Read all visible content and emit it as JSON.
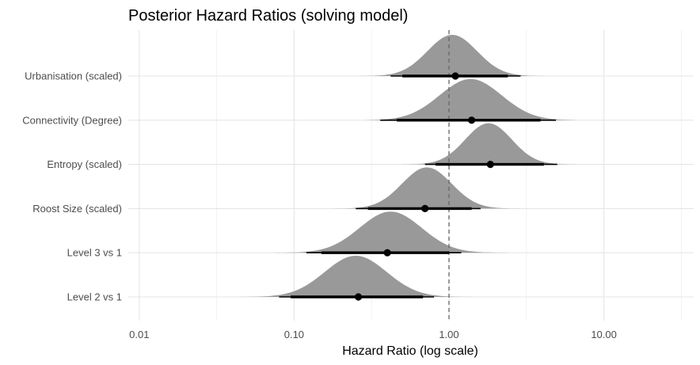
{
  "chart_data": {
    "type": "density-interval",
    "title": "Posterior Hazard Ratios (solving model)",
    "xlabel": "Hazard Ratio (log scale)",
    "ylabel": "",
    "x_scale": "log10",
    "xlim": [
      0.0085,
      38
    ],
    "x_ticks": [
      0.01,
      0.1,
      1,
      10
    ],
    "x_tick_labels": [
      "0.01",
      "0.10",
      "1.00",
      "10.00"
    ],
    "reference_line": 1,
    "grid": true,
    "categories": [
      "Urbanisation (scaled)",
      "Connectivity (Degree)",
      "Entropy (scaled)",
      "Roost Size (scaled)",
      "Level 3 vs 1",
      "Level 2 vs 1"
    ],
    "series": [
      {
        "label": "Urbanisation (scaled)",
        "median": 1.1,
        "ci_inner": [
          0.5,
          2.4
        ],
        "ci_outer": [
          0.42,
          2.9
        ],
        "density_mode": 1.05,
        "density_sd_log10": 0.16
      },
      {
        "label": "Connectivity (Degree)",
        "median": 1.4,
        "ci_inner": [
          0.46,
          3.9
        ],
        "ci_outer": [
          0.36,
          4.9
        ],
        "density_mode": 1.38,
        "density_sd_log10": 0.2
      },
      {
        "label": "Entropy (scaled)",
        "median": 1.85,
        "ci_inner": [
          0.82,
          4.1
        ],
        "ci_outer": [
          0.7,
          5.0
        ],
        "density_mode": 1.8,
        "density_sd_log10": 0.15
      },
      {
        "label": "Roost Size (scaled)",
        "median": 0.7,
        "ci_inner": [
          0.3,
          1.4
        ],
        "ci_outer": [
          0.25,
          1.6
        ],
        "density_mode": 0.72,
        "density_sd_log10": 0.16
      },
      {
        "label": "Level 3 vs 1",
        "median": 0.4,
        "ci_inner": [
          0.15,
          1.0
        ],
        "ci_outer": [
          0.12,
          1.2
        ],
        "density_mode": 0.42,
        "density_sd_log10": 0.2
      },
      {
        "label": "Level 2 vs 1",
        "median": 0.26,
        "ci_inner": [
          0.095,
          0.68
        ],
        "ci_outer": [
          0.08,
          0.8
        ],
        "density_mode": 0.25,
        "density_sd_log10": 0.2
      }
    ],
    "colors": {
      "density_fill": "#999999",
      "interval": "#000000",
      "point": "#000000",
      "reference_line": "#666666",
      "grid_major": "#e5e5e5",
      "grid_minor": "#f2f2f2"
    }
  }
}
